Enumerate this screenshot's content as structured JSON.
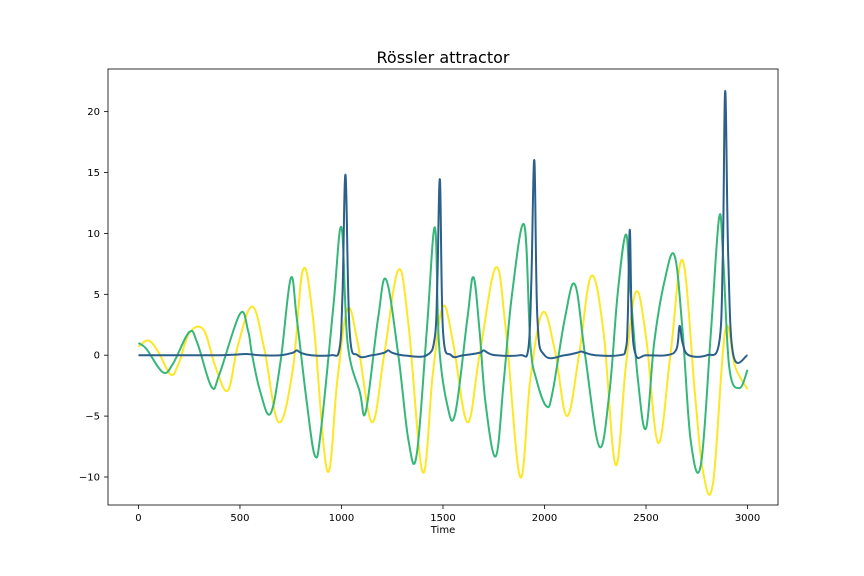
{
  "chart_data": {
    "type": "line",
    "title": "Rössler attractor",
    "xlabel": "Time",
    "ylabel": "",
    "xlim": [
      -150,
      3150
    ],
    "ylim": [
      -12.3,
      23.5
    ],
    "xticks": [
      0,
      500,
      1000,
      1500,
      2000,
      2500,
      3000
    ],
    "yticks": [
      -10,
      -5,
      0,
      5,
      10,
      15,
      20
    ],
    "grid": false,
    "legend": "none",
    "series": [
      {
        "color": "#fde725",
        "x": [
          0,
          50,
          100,
          160,
          200,
          250,
          320,
          380,
          440,
          490,
          560,
          620,
          690,
          760,
          810,
          860,
          930,
          980,
          1030,
          1080,
          1150,
          1210,
          1280,
          1330,
          1400,
          1450,
          1500,
          1550,
          1620,
          1680,
          1760,
          1810,
          1880,
          1930,
          1990,
          2050,
          2110,
          2170,
          2230,
          2290,
          2350,
          2400,
          2450,
          2500,
          2560,
          2620,
          2680,
          2740,
          2780,
          2830,
          2890,
          2940,
          3000
        ],
        "y": [
          0.7,
          1.2,
          0.2,
          -1.6,
          -0.6,
          1.8,
          2.1,
          -1.0,
          -2.9,
          0.8,
          4.0,
          0.5,
          -5.5,
          -1.2,
          7.0,
          3.0,
          -9.5,
          -2.0,
          3.8,
          1.0,
          -5.5,
          0.0,
          7.0,
          2.5,
          -9.6,
          -1.5,
          4.0,
          1.0,
          -5.5,
          0.0,
          7.2,
          2.0,
          -10.0,
          -2.0,
          3.5,
          0.5,
          -5.0,
          0.0,
          6.5,
          2.0,
          -9.0,
          -1.0,
          5.2,
          1.5,
          -7.2,
          0.0,
          7.8,
          -3.0,
          -9.5,
          -10.5,
          2.0,
          -1.0,
          -2.8
        ]
      },
      {
        "color": "#35b779",
        "x": [
          0,
          40,
          120,
          170,
          250,
          290,
          360,
          400,
          500,
          540,
          560,
          600,
          650,
          700,
          750,
          780,
          830,
          870,
          900,
          960,
          1000,
          1030,
          1090,
          1120,
          1180,
          1220,
          1280,
          1330,
          1370,
          1420,
          1460,
          1480,
          1520,
          1560,
          1620,
          1650,
          1680,
          1710,
          1760,
          1800,
          1840,
          1900,
          1930,
          1960,
          2010,
          2040,
          2100,
          2150,
          2200,
          2270,
          2320,
          2360,
          2400,
          2420,
          2460,
          2500,
          2540,
          2590,
          2640,
          2680,
          2720,
          2770,
          2820,
          2860,
          2880,
          2910,
          2960,
          3000
        ],
        "y": [
          1.0,
          0.5,
          -1.4,
          -0.7,
          1.9,
          1.0,
          -2.6,
          -1.5,
          3.4,
          2.0,
          0.0,
          -3.0,
          -4.8,
          -0.5,
          6.3,
          3.0,
          -4.0,
          -8.3,
          -6.0,
          4.0,
          10.5,
          1.0,
          -3.0,
          -4.6,
          3.0,
          6.2,
          0.0,
          -7.0,
          -8.2,
          2.0,
          10.5,
          1.0,
          -4.0,
          -4.8,
          3.0,
          6.4,
          2.0,
          -4.0,
          -8.3,
          -2.0,
          5.0,
          10.7,
          1.0,
          -2.0,
          -4.2,
          -3.0,
          3.0,
          5.8,
          0.0,
          -7.5,
          -3.0,
          5.0,
          9.9,
          6.0,
          -2.0,
          -6.0,
          1.0,
          6.0,
          8.2,
          2.0,
          -7.0,
          -9.0,
          2.0,
          11.3,
          8.0,
          -1.0,
          -2.7,
          -1.2
        ]
      },
      {
        "color": "#2c5f8a",
        "x": [
          0,
          200,
          300,
          400,
          480,
          530,
          600,
          700,
          760,
          780,
          800,
          850,
          950,
          990,
          1005,
          1020,
          1040,
          1080,
          1150,
          1210,
          1230,
          1250,
          1300,
          1420,
          1460,
          1472,
          1485,
          1500,
          1540,
          1600,
          1680,
          1700,
          1720,
          1760,
          1880,
          1920,
          1935,
          1950,
          1965,
          2000,
          2100,
          2160,
          2180,
          2200,
          2250,
          2370,
          2400,
          2410,
          2420,
          2430,
          2450,
          2500,
          2600,
          2650,
          2665,
          2680,
          2710,
          2800,
          2860,
          2878,
          2890,
          2905,
          2930,
          3000
        ],
        "y": [
          0.0,
          0.0,
          0.0,
          0.0,
          0.05,
          0.1,
          0.0,
          0.0,
          0.2,
          0.4,
          0.2,
          0.0,
          0.0,
          0.5,
          5.0,
          14.8,
          2.0,
          0.0,
          0.0,
          0.2,
          0.4,
          0.2,
          0.0,
          0.0,
          1.5,
          6.0,
          14.4,
          2.0,
          0.0,
          0.0,
          0.2,
          0.4,
          0.2,
          0.0,
          0.0,
          0.5,
          6.0,
          16.0,
          3.0,
          0.0,
          0.0,
          0.2,
          0.3,
          0.2,
          0.0,
          0.0,
          0.5,
          3.0,
          10.3,
          3.0,
          0.0,
          0.0,
          0.0,
          0.5,
          2.4,
          1.0,
          0.0,
          0.0,
          1.0,
          8.0,
          21.7,
          8.0,
          0.0,
          0.0
        ]
      }
    ]
  }
}
